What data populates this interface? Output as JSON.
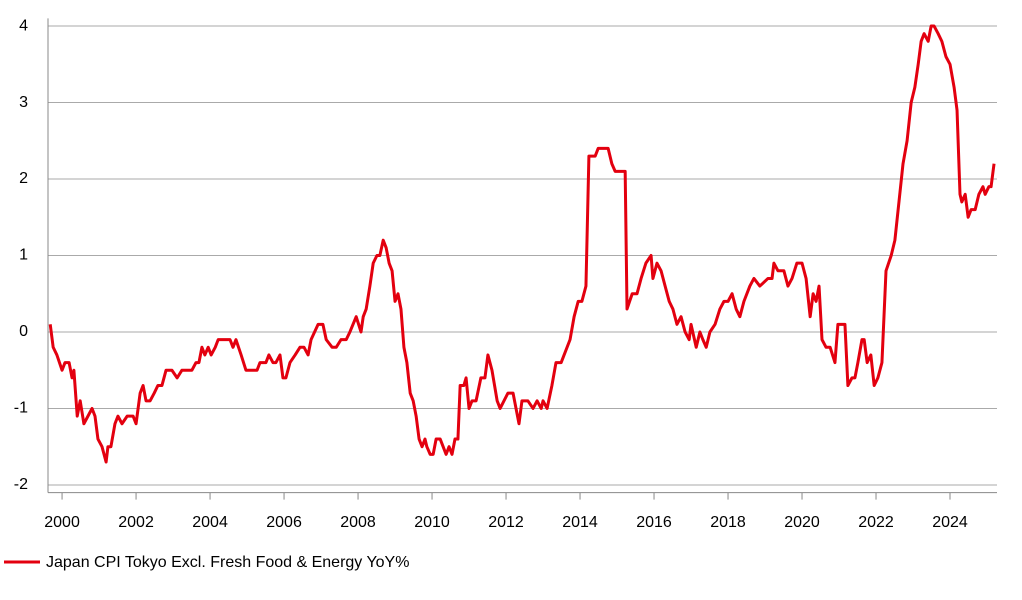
{
  "chart_data": {
    "type": "line",
    "x": [
      1999.68,
      1999.76,
      1999.86,
      2000.0,
      2000.08,
      2000.19,
      2000.27,
      2000.32,
      2000.41,
      2000.49,
      2000.59,
      2000.7,
      2000.81,
      2000.89,
      2000.97,
      2001.08,
      2001.19,
      2001.24,
      2001.32,
      2001.43,
      2001.51,
      2001.62,
      2001.76,
      2001.92,
      2002.0,
      2002.11,
      2002.19,
      2002.27,
      2002.38,
      2002.49,
      2002.59,
      2002.7,
      2002.81,
      2002.97,
      2003.11,
      2003.24,
      2003.51,
      2003.62,
      2003.7,
      2003.78,
      2003.86,
      2003.95,
      2004.03,
      2004.14,
      2004.22,
      2004.54,
      2004.62,
      2004.7,
      2004.84,
      2004.97,
      2005.27,
      2005.35,
      2005.51,
      2005.59,
      2005.7,
      2005.78,
      2005.89,
      2005.97,
      2006.05,
      2006.16,
      2006.3,
      2006.43,
      2006.54,
      2006.65,
      2006.73,
      2006.92,
      2007.05,
      2007.14,
      2007.3,
      2007.41,
      2007.54,
      2007.68,
      2007.78,
      2007.95,
      2008.08,
      2008.14,
      2008.22,
      2008.32,
      2008.41,
      2008.51,
      2008.59,
      2008.68,
      2008.76,
      2008.84,
      2008.92,
      2009.0,
      2009.08,
      2009.16,
      2009.24,
      2009.32,
      2009.41,
      2009.49,
      2009.57,
      2009.65,
      2009.73,
      2009.81,
      2009.86,
      2009.95,
      2010.03,
      2010.11,
      2010.22,
      2010.3,
      2010.38,
      2010.46,
      2010.54,
      2010.62,
      2010.7,
      2010.76,
      2010.86,
      2010.92,
      2011.0,
      2011.08,
      2011.19,
      2011.32,
      2011.43,
      2011.51,
      2011.62,
      2011.76,
      2011.84,
      2012.05,
      2012.19,
      2012.35,
      2012.43,
      2012.59,
      2012.73,
      2012.84,
      2012.95,
      2013.0,
      2013.11,
      2013.24,
      2013.35,
      2013.49,
      2013.73,
      2013.84,
      2013.95,
      2014.05,
      2014.16,
      2014.24,
      2014.41,
      2014.49,
      2014.76,
      2014.86,
      2014.95,
      2015.22,
      2015.27,
      2015.41,
      2015.54,
      2015.65,
      2015.78,
      2015.92,
      2015.97,
      2016.08,
      2016.19,
      2016.3,
      2016.41,
      2016.51,
      2016.62,
      2016.73,
      2016.84,
      2016.95,
      2017.0,
      2017.14,
      2017.24,
      2017.32,
      2017.41,
      2017.51,
      2017.65,
      2017.78,
      2017.89,
      2018.0,
      2018.11,
      2018.22,
      2018.32,
      2018.43,
      2018.59,
      2018.7,
      2018.86,
      2019.08,
      2019.19,
      2019.24,
      2019.35,
      2019.51,
      2019.62,
      2019.73,
      2019.86,
      2020.0,
      2020.11,
      2020.22,
      2020.3,
      2020.38,
      2020.46,
      2020.54,
      2020.65,
      2020.76,
      2020.89,
      2020.97,
      2021.16,
      2021.24,
      2021.35,
      2021.43,
      2021.51,
      2021.62,
      2021.68,
      2021.76,
      2021.86,
      2021.95,
      2022.05,
      2022.16,
      2022.27,
      2022.41,
      2022.51,
      2022.62,
      2022.73,
      2022.84,
      2022.95,
      2023.05,
      2023.14,
      2023.22,
      2023.3,
      2023.41,
      2023.49,
      2023.57,
      2023.68,
      2023.78,
      2023.89,
      2024.0,
      2024.11,
      2024.19,
      2024.27,
      2024.32,
      2024.41,
      2024.49,
      2024.57,
      2024.68,
      2024.78,
      2024.89,
      2024.95,
      2025.05,
      2025.11,
      2025.19
    ],
    "series": [
      {
        "name": "Japan CPI Tokyo Excl. Fresh Food & Energy YoY%",
        "color": "#e3000f",
        "values": [
          0.1,
          -0.2,
          -0.3,
          -0.5,
          -0.4,
          -0.4,
          -0.6,
          -0.5,
          -1.1,
          -0.9,
          -1.2,
          -1.1,
          -1.0,
          -1.1,
          -1.4,
          -1.5,
          -1.7,
          -1.5,
          -1.5,
          -1.2,
          -1.1,
          -1.2,
          -1.1,
          -1.1,
          -1.2,
          -0.8,
          -0.7,
          -0.9,
          -0.9,
          -0.8,
          -0.7,
          -0.7,
          -0.5,
          -0.5,
          -0.6,
          -0.5,
          -0.5,
          -0.4,
          -0.4,
          -0.2,
          -0.3,
          -0.2,
          -0.3,
          -0.2,
          -0.1,
          -0.1,
          -0.2,
          -0.1,
          -0.3,
          -0.5,
          -0.5,
          -0.4,
          -0.4,
          -0.3,
          -0.4,
          -0.4,
          -0.3,
          -0.6,
          -0.6,
          -0.4,
          -0.3,
          -0.2,
          -0.2,
          -0.3,
          -0.1,
          0.1,
          0.1,
          -0.1,
          -0.2,
          -0.2,
          -0.1,
          -0.1,
          0.0,
          0.2,
          0.0,
          0.2,
          0.3,
          0.6,
          0.9,
          1.0,
          1.0,
          1.2,
          1.1,
          0.9,
          0.8,
          0.4,
          0.5,
          0.3,
          -0.2,
          -0.4,
          -0.8,
          -0.9,
          -1.1,
          -1.4,
          -1.5,
          -1.4,
          -1.5,
          -1.6,
          -1.6,
          -1.4,
          -1.4,
          -1.5,
          -1.6,
          -1.5,
          -1.6,
          -1.4,
          -1.4,
          -0.7,
          -0.7,
          -0.6,
          -1.0,
          -0.9,
          -0.9,
          -0.6,
          -0.6,
          -0.3,
          -0.5,
          -0.9,
          -1.0,
          -0.8,
          -0.8,
          -1.2,
          -0.9,
          -0.9,
          -1.0,
          -0.9,
          -1.0,
          -0.9,
          -1.0,
          -0.7,
          -0.4,
          -0.4,
          -0.1,
          0.2,
          0.4,
          0.4,
          0.6,
          2.3,
          2.3,
          2.4,
          2.4,
          2.2,
          2.1,
          2.1,
          0.3,
          0.5,
          0.5,
          0.7,
          0.9,
          1.0,
          0.7,
          0.9,
          0.8,
          0.6,
          0.4,
          0.3,
          0.1,
          0.2,
          0.0,
          -0.1,
          0.1,
          -0.2,
          0.0,
          -0.1,
          -0.2,
          0.0,
          0.1,
          0.3,
          0.4,
          0.4,
          0.5,
          0.3,
          0.2,
          0.4,
          0.6,
          0.7,
          0.6,
          0.7,
          0.7,
          0.9,
          0.8,
          0.8,
          0.6,
          0.7,
          0.9,
          0.9,
          0.7,
          0.2,
          0.5,
          0.4,
          0.6,
          -0.1,
          -0.2,
          -0.2,
          -0.4,
          0.1,
          0.1,
          -0.7,
          -0.6,
          -0.6,
          -0.4,
          -0.1,
          -0.1,
          -0.4,
          -0.3,
          -0.7,
          -0.6,
          -0.4,
          0.8,
          1.0,
          1.2,
          1.7,
          2.2,
          2.5,
          3.0,
          3.2,
          3.5,
          3.8,
          3.9,
          3.8,
          4.0,
          4.0,
          3.9,
          3.8,
          3.6,
          3.5,
          3.2,
          2.9,
          1.8,
          1.7,
          1.8,
          1.5,
          1.6,
          1.6,
          1.8,
          1.9,
          1.8,
          1.9,
          1.9,
          2.2
        ]
      }
    ],
    "xlim": [
      1999.62,
      2025.27
    ],
    "xticks": [
      2000,
      2002,
      2004,
      2006,
      2008,
      2010,
      2012,
      2014,
      2016,
      2018,
      2020,
      2022,
      2024
    ],
    "ylim": [
      -2.1,
      4.1
    ],
    "yticks": [
      -2,
      -1,
      0,
      1,
      2,
      3,
      4
    ],
    "grid": true,
    "legend": "bottom-left"
  }
}
